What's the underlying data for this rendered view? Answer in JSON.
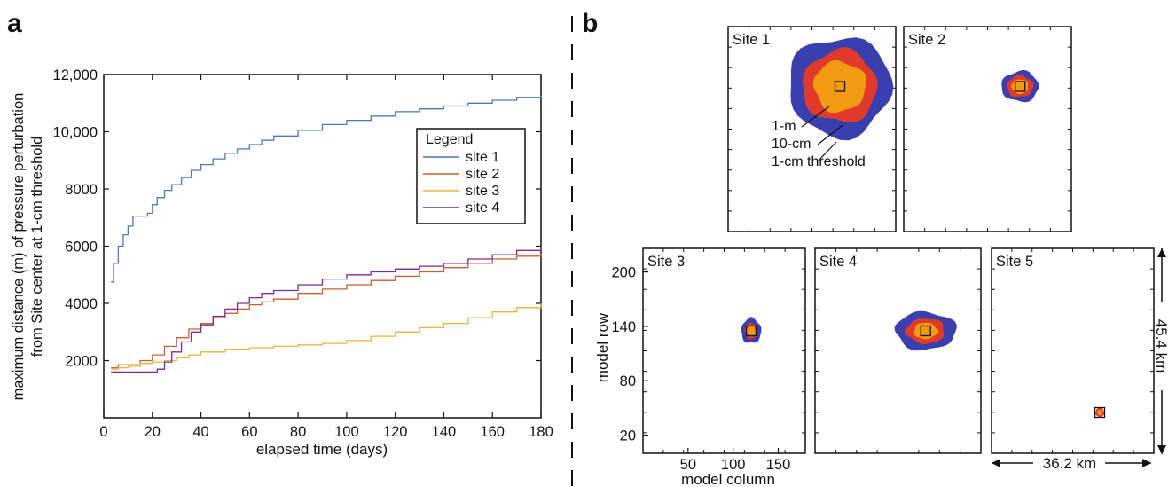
{
  "panel_labels": {
    "a": "a",
    "b": "b"
  },
  "colors": {
    "site1": "#4a7ab7",
    "site2": "#d45a2c",
    "site3": "#f0b23a",
    "site4": "#7a2a9b",
    "threshold_1cm": "#3a3fb0",
    "threshold_10cm": "#e03a2a",
    "threshold_1m": "#f39a12"
  },
  "chart_data": [
    {
      "type": "line",
      "xlabel": "elapsed time (days)",
      "ylabel_line1": "maximum distance (m) of pressure perturbation",
      "ylabel_line2": "from Site center at 1-cm threshold",
      "xlim": [
        0,
        180
      ],
      "ylim": [
        0,
        12000
      ],
      "xticks": [
        0,
        20,
        40,
        60,
        80,
        100,
        120,
        140,
        160,
        180
      ],
      "xtick_labels": [
        "0",
        "20",
        "40",
        "60",
        "80",
        "100",
        "120",
        "140",
        "160",
        "180"
      ],
      "yticks": [
        2000,
        4000,
        6000,
        8000,
        10000,
        12000
      ],
      "ytick_labels": [
        "2000",
        "4000",
        "6000",
        "8000",
        "10,000",
        "12,000"
      ],
      "legend_title": "Legend",
      "legend_position": "right",
      "series": [
        {
          "name": "site 1",
          "color": "#4a7ab7",
          "x": [
            3,
            4,
            6,
            8,
            10,
            12,
            14,
            18,
            20,
            22,
            25,
            28,
            32,
            36,
            40,
            45,
            50,
            55,
            60,
            65,
            70,
            80,
            90,
            100,
            110,
            120,
            130,
            140,
            150,
            160,
            170,
            180
          ],
          "y": [
            4750,
            5400,
            6000,
            6400,
            6700,
            7050,
            7050,
            7150,
            7450,
            7700,
            7950,
            8150,
            8400,
            8650,
            8850,
            9050,
            9250,
            9400,
            9550,
            9700,
            9850,
            10050,
            10250,
            10400,
            10550,
            10700,
            10800,
            10900,
            11000,
            11100,
            11200,
            11250
          ]
        },
        {
          "name": "site 2",
          "color": "#d45a2c",
          "x": [
            3,
            6,
            10,
            15,
            20,
            25,
            30,
            35,
            40,
            45,
            50,
            55,
            60,
            65,
            70,
            80,
            90,
            100,
            110,
            120,
            130,
            140,
            150,
            160,
            170,
            180
          ],
          "y": [
            1750,
            1850,
            1850,
            2000,
            2200,
            2500,
            2800,
            3100,
            3300,
            3500,
            3650,
            3800,
            3950,
            4050,
            4150,
            4350,
            4500,
            4650,
            4800,
            4950,
            5100,
            5250,
            5400,
            5550,
            5650,
            5750
          ]
        },
        {
          "name": "site 3",
          "color": "#f0b23a",
          "x": [
            3,
            6,
            10,
            15,
            20,
            25,
            30,
            35,
            40,
            50,
            60,
            70,
            80,
            90,
            100,
            110,
            120,
            130,
            140,
            150,
            160,
            170,
            180
          ],
          "y": [
            1700,
            1750,
            1800,
            1900,
            1950,
            2000,
            2100,
            2200,
            2300,
            2400,
            2450,
            2500,
            2550,
            2600,
            2700,
            2850,
            3000,
            3150,
            3300,
            3500,
            3700,
            3850,
            4000
          ]
        },
        {
          "name": "site 4",
          "color": "#7a2a9b",
          "x": [
            3,
            10,
            20,
            22,
            25,
            28,
            32,
            36,
            40,
            45,
            50,
            55,
            60,
            65,
            70,
            80,
            90,
            100,
            110,
            120,
            130,
            140,
            150,
            160,
            170,
            180
          ],
          "y": [
            1600,
            1600,
            1600,
            1700,
            1950,
            2300,
            2650,
            3000,
            3250,
            3550,
            3800,
            4000,
            4200,
            4350,
            4450,
            4650,
            4850,
            5000,
            5100,
            5200,
            5300,
            5400,
            5550,
            5700,
            5850,
            6000
          ]
        }
      ]
    },
    {
      "type": "heatmap",
      "xlabel": "model column",
      "ylabel": "model row",
      "xticks": [
        50,
        100,
        150
      ],
      "xtick_labels": [
        "50",
        "100",
        "150"
      ],
      "yticks": [
        20,
        80,
        140,
        200
      ],
      "ytick_labels": [
        "20",
        "80",
        "140",
        "200"
      ],
      "scale_width": "36.2 km",
      "scale_height": "45.4 km",
      "annotations": [
        "1-m",
        "10-cm",
        "1-cm threshold"
      ],
      "sites": [
        {
          "name": "Site 1",
          "center": [
            120,
            160
          ],
          "radius_1cm": [
            55,
            55
          ],
          "radius_10cm": [
            40,
            40
          ],
          "radius_1m": [
            28,
            28
          ]
        },
        {
          "name": "Site 2",
          "center": [
            125,
            160
          ],
          "radius_1cm": [
            20,
            17
          ],
          "radius_10cm": [
            14,
            12
          ],
          "radius_1m": [
            9,
            8
          ]
        },
        {
          "name": "Site 3",
          "center": [
            120,
            135
          ],
          "radius_1cm": [
            11,
            14
          ],
          "radius_10cm": [
            7,
            9
          ],
          "radius_1m": [
            5,
            6
          ]
        },
        {
          "name": "Site 4",
          "center": [
            120,
            135
          ],
          "radius_1cm": [
            33,
            21
          ],
          "radius_10cm": [
            21,
            14
          ],
          "radius_1m": [
            13,
            9
          ]
        },
        {
          "name": "Site 5",
          "center": [
            120,
            45
          ],
          "radius_1cm": [
            0,
            0
          ],
          "radius_10cm": [
            5,
            5
          ],
          "radius_1m": [
            3,
            3
          ]
        }
      ]
    }
  ]
}
